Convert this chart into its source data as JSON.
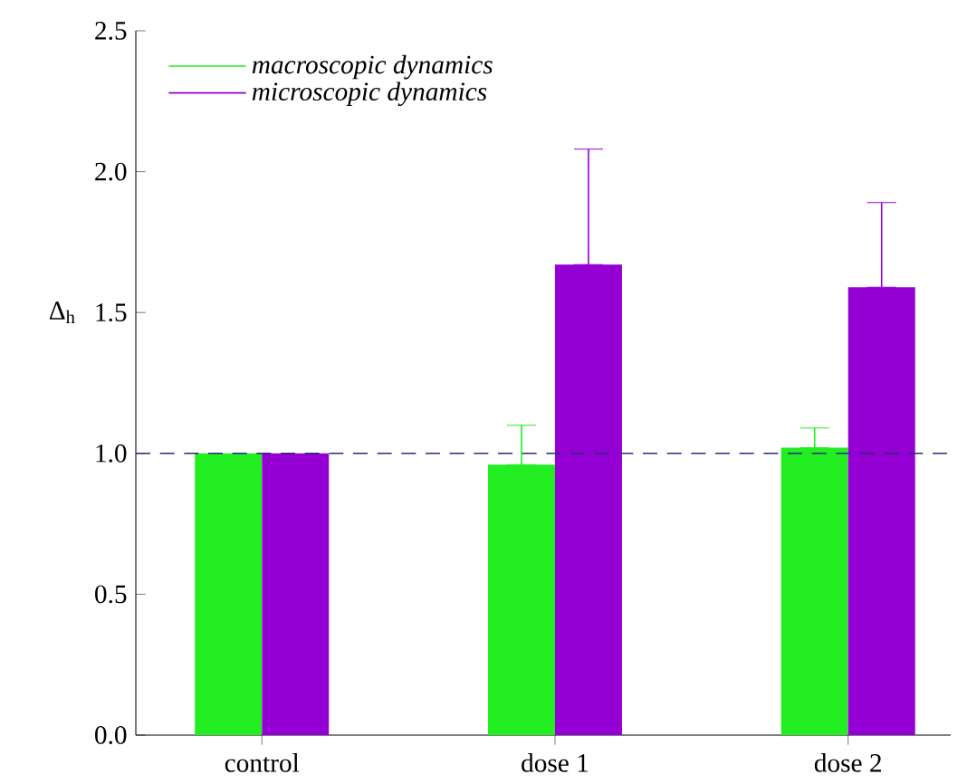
{
  "chart_data": {
    "type": "bar",
    "ylabel": "Δ$_{h}$",
    "categories": [
      "control",
      "dose 1",
      "dose 2"
    ],
    "series": [
      {
        "name": "macroscopic dynamics",
        "color": "#22ee22",
        "values": [
          1.0,
          0.96,
          1.02
        ],
        "errors": [
          null,
          [
            0.96,
            1.1
          ],
          [
            1.02,
            1.09
          ]
        ]
      },
      {
        "name": "microscopic dynamics",
        "color": "#9400d3",
        "values": [
          1.0,
          1.67,
          1.59
        ],
        "errors": [
          null,
          [
            1.67,
            2.08
          ],
          [
            1.59,
            1.89
          ]
        ]
      }
    ],
    "ylim": [
      0,
      2.5
    ],
    "yticks": [
      {
        "value": 0,
        "label": "0.0"
      },
      {
        "value": 0.5,
        "label": "0.5"
      },
      {
        "value": 1,
        "label": "1.0"
      },
      {
        "value": 1.5,
        "label": "1.5"
      },
      {
        "value": 2,
        "label": "2.0"
      },
      {
        "value": 2.5,
        "label": "2.5"
      }
    ],
    "ref_lines": [
      {
        "axis": "y",
        "value": 1,
        "color": "#2a2a7a",
        "line_style": "dashed"
      }
    ],
    "legend": "top left"
  }
}
